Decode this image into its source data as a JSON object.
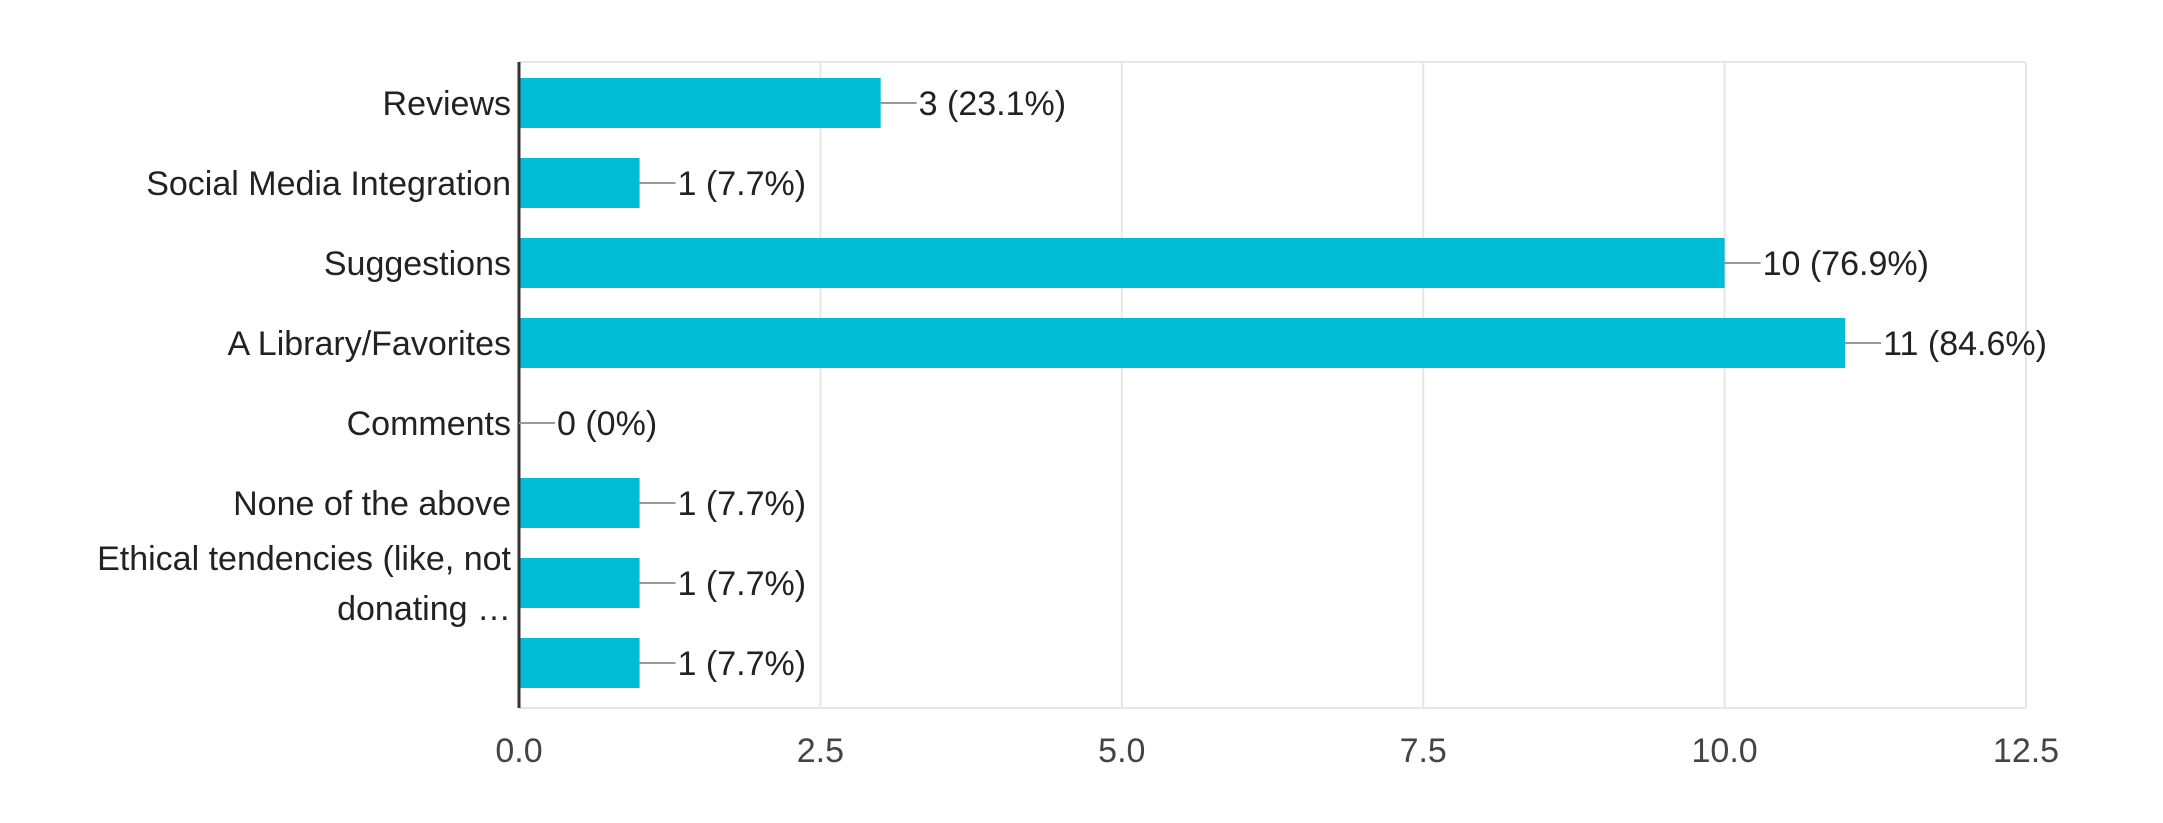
{
  "chart_data": {
    "type": "bar",
    "orientation": "horizontal",
    "categories": [
      "Reviews",
      "Social Media Integration",
      "Suggestions",
      "A Library/Favorites",
      "Comments",
      "None of the above",
      "Ethical tendencies (like, not donating …",
      ""
    ],
    "category_label_lines": [
      [
        "Reviews"
      ],
      [
        "Social Media Integration"
      ],
      [
        "Suggestions"
      ],
      [
        "A Library/Favorites"
      ],
      [
        "Comments"
      ],
      [
        "None of the above"
      ],
      [
        "Ethical tendencies (like, not",
        "donating …"
      ],
      []
    ],
    "values": [
      3,
      1,
      10,
      11,
      0,
      1,
      1,
      1
    ],
    "value_labels": [
      "3 (23.1%)",
      "1 (7.7%)",
      "10 (76.9%)",
      "11 (84.6%)",
      "0 (0%)",
      "1 (7.7%)",
      "1 (7.7%)",
      "1 (7.7%)"
    ],
    "xlim": [
      0,
      12.5
    ],
    "xticks": [
      "0.0",
      "2.5",
      "5.0",
      "7.5",
      "10.0",
      "12.5"
    ],
    "xtick_values": [
      0,
      2.5,
      5,
      7.5,
      10,
      12.5
    ],
    "title": "",
    "xlabel": "",
    "ylabel": "",
    "grid": true,
    "legend": "none",
    "colors": {
      "bar": "#00bcd4",
      "grid": "#e6e6e6",
      "axis": "#333333",
      "text": "#222222",
      "leader": "#999999"
    }
  }
}
